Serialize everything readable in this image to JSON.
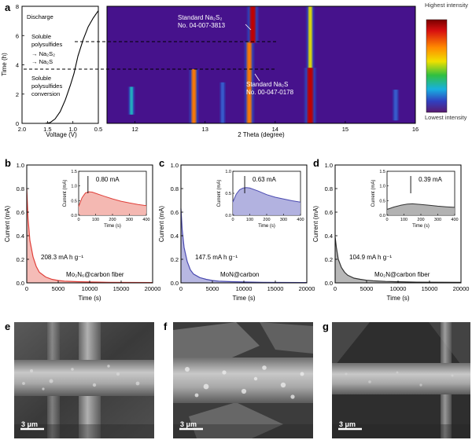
{
  "panel_labels": {
    "a": "a",
    "b": "b",
    "c": "c",
    "d": "d",
    "e": "e",
    "f": "f",
    "g": "g"
  },
  "chart_data": [
    {
      "id": "a-voltage",
      "type": "line",
      "title": "",
      "xlabel": "Voltage (V)",
      "ylabel": "Time (h)",
      "xlim": [
        2.0,
        0.5
      ],
      "ylim": [
        0,
        8
      ],
      "xticks": [
        "2.0",
        "1.5",
        "1.0",
        "0.5"
      ],
      "yticks": [
        "0",
        "2",
        "4",
        "6",
        "8"
      ],
      "x": [
        1.55,
        1.45,
        1.35,
        1.25,
        1.15,
        1.05,
        0.98,
        0.9,
        0.8,
        0.7,
        0.6,
        0.5
      ],
      "y": [
        0.0,
        0.05,
        0.3,
        0.8,
        1.6,
        2.6,
        3.4,
        4.6,
        5.7,
        6.6,
        7.2,
        7.7
      ],
      "annotations": {
        "discharge": "Discharge",
        "soluble1": "Soluble",
        "polysulfides1": "polysulfides",
        "arrow_na2s2": "→ Na₂S₂",
        "arrow_na2s": "→ Na₂S",
        "soluble2": "Soluble",
        "polysulfides2": "polysulfides",
        "conversion": "conversion"
      },
      "dashed_lines_h": [
        5.5,
        3.6
      ]
    },
    {
      "id": "a-xrd-map",
      "type": "heatmap",
      "xlabel": "2 Theta (degree)",
      "xlim": [
        11.6,
        16
      ],
      "ylim": [
        0,
        8
      ],
      "xticks": [
        "12",
        "13",
        "14",
        "15",
        "16"
      ],
      "peaks": [
        {
          "x": 11.95,
          "y0": 0.6,
          "y1": 2.5,
          "level": 0.35
        },
        {
          "x": 12.84,
          "y0": 0.0,
          "y1": 3.7,
          "level": 0.7
        },
        {
          "x": 13.25,
          "y0": 0.0,
          "y1": 2.8,
          "level": 0.25
        },
        {
          "x": 13.63,
          "y0": 0.0,
          "y1": 5.6,
          "level": 0.75
        },
        {
          "x": 13.68,
          "y0": 5.5,
          "y1": 8.0,
          "level": 0.95
        },
        {
          "x": 14.5,
          "y0": 0.0,
          "y1": 3.8,
          "level": 1.0
        },
        {
          "x": 14.5,
          "y0": 3.8,
          "y1": 8.0,
          "level": 0.55
        },
        {
          "x": 15.72,
          "y0": 0.2,
          "y1": 2.3,
          "level": 0.3
        }
      ],
      "labels": {
        "na2s2_line1": "Standard Na₂S₂",
        "na2s2_line2": "No. 04-007-3813",
        "na2s_line1": "Standard Na₂S",
        "na2s_line2": "No. 00-047-0178"
      },
      "colorbar": {
        "top": "Highest intensity",
        "bottom": "Lowest intensity"
      }
    },
    {
      "id": "b",
      "type": "area",
      "xlabel": "Time (s)",
      "ylabel": "Current (mA)",
      "xlim": [
        0,
        20000
      ],
      "ylim": [
        0,
        1.0
      ],
      "xticks": [
        "0",
        "5000",
        "10000",
        "15000",
        "20000"
      ],
      "yticks": [
        "0.0",
        "0.2",
        "0.4",
        "0.6",
        "0.8",
        "1.0"
      ],
      "x": [
        0,
        200,
        500,
        1000,
        1500,
        2000,
        3000,
        4000,
        5000,
        6000,
        8000,
        10000,
        13000,
        20000
      ],
      "y": [
        0.8,
        0.55,
        0.36,
        0.22,
        0.14,
        0.09,
        0.05,
        0.03,
        0.02,
        0.015,
        0.01,
        0.007,
        0.005,
        0.003
      ],
      "capacity": "208.3 mA h g⁻¹",
      "material": "Mo₂N₆@carbon  fiber",
      "color": "#e0403a",
      "fill": "#f3b0aa",
      "inset": {
        "xlabel": "Time (s)",
        "ylabel": "Current (mA)",
        "xlim": [
          0,
          400
        ],
        "ylim": [
          0,
          1.5
        ],
        "xticks": [
          "0",
          "100",
          "200",
          "300",
          "400"
        ],
        "yticks": [
          "0.0",
          "0.5",
          "1.0",
          "1.5"
        ],
        "x": [
          0,
          20,
          40,
          60,
          80,
          100,
          150,
          200,
          250,
          300,
          350,
          400
        ],
        "y": [
          0.3,
          0.6,
          0.76,
          0.8,
          0.79,
          0.75,
          0.65,
          0.56,
          0.48,
          0.42,
          0.37,
          0.33
        ],
        "peak_x": 55,
        "peak_label": "0.80 mA"
      }
    },
    {
      "id": "c",
      "type": "area",
      "xlabel": "Time (s)",
      "ylabel": "Current (mA)",
      "xlim": [
        0,
        20000
      ],
      "ylim": [
        0,
        1.0
      ],
      "xticks": [
        "0",
        "5000",
        "10000",
        "15000",
        "20000"
      ],
      "yticks": [
        "0.0",
        "0.2",
        "0.4",
        "0.6",
        "0.8",
        "1.0"
      ],
      "x": [
        0,
        200,
        500,
        1000,
        1500,
        2000,
        3000,
        4000,
        5000,
        6000,
        8000,
        10000,
        13000,
        20000
      ],
      "y": [
        0.63,
        0.45,
        0.3,
        0.18,
        0.11,
        0.075,
        0.045,
        0.03,
        0.02,
        0.015,
        0.01,
        0.007,
        0.005,
        0.003
      ],
      "capacity": "147.5 mA h g⁻¹",
      "material": "MoN@carbon",
      "color": "#4a4ab0",
      "fill": "#aaaadd",
      "inset": {
        "xlabel": "Time (s)",
        "ylabel": "Current (mA)",
        "xlim": [
          0,
          400
        ],
        "ylim": [
          0,
          1.0
        ],
        "xticks": [
          "0",
          "100",
          "200",
          "300",
          "400"
        ],
        "yticks": [
          "0.0",
          "0.5",
          "1.0"
        ],
        "x": [
          0,
          20,
          40,
          60,
          80,
          100,
          150,
          200,
          250,
          300,
          350,
          400
        ],
        "y": [
          0.3,
          0.48,
          0.58,
          0.62,
          0.63,
          0.62,
          0.55,
          0.47,
          0.41,
          0.37,
          0.33,
          0.3
        ],
        "peak_x": 70,
        "peak_label": "0.63 mA"
      }
    },
    {
      "id": "d",
      "type": "area",
      "xlabel": "Time (s)",
      "ylabel": "Current (mA)",
      "xlim": [
        0,
        20000
      ],
      "ylim": [
        0,
        1.0
      ],
      "xticks": [
        "0",
        "5000",
        "10000",
        "15000",
        "20000"
      ],
      "yticks": [
        "0.0",
        "0.2",
        "0.4",
        "0.6",
        "0.8",
        "1.0"
      ],
      "x": [
        0,
        200,
        500,
        1000,
        1500,
        2000,
        3000,
        4000,
        5000,
        6000,
        8000,
        10000,
        13000,
        20000
      ],
      "y": [
        0.39,
        0.3,
        0.2,
        0.13,
        0.09,
        0.065,
        0.04,
        0.03,
        0.022,
        0.017,
        0.012,
        0.009,
        0.006,
        0.004
      ],
      "capacity": "104.9 mA h g⁻¹",
      "material": "Mo₂N@carbon  fiber",
      "color": "#333333",
      "fill": "#aaaaaa",
      "inset": {
        "xlabel": "Time (s)",
        "ylabel": "Current (mA)",
        "xlim": [
          0,
          400
        ],
        "ylim": [
          0,
          1.5
        ],
        "xticks": [
          "0",
          "100",
          "200",
          "300",
          "400"
        ],
        "yticks": [
          "0.0",
          "0.5",
          "1.0",
          "1.5"
        ],
        "x": [
          0,
          40,
          80,
          120,
          150,
          200,
          250,
          300,
          350,
          400
        ],
        "y": [
          0.2,
          0.28,
          0.34,
          0.38,
          0.39,
          0.37,
          0.34,
          0.31,
          0.29,
          0.27
        ],
        "peak_x": 140,
        "peak_label": "0.39 mA"
      }
    }
  ],
  "sem_images": [
    {
      "id": "e",
      "scale_label": "3 μm"
    },
    {
      "id": "f",
      "scale_label": "3 μm"
    },
    {
      "id": "g",
      "scale_label": "3 μm"
    }
  ],
  "colors": {
    "accent_red": "#e0403a",
    "accent_blue": "#4a4ab0",
    "accent_gray": "#333333"
  }
}
